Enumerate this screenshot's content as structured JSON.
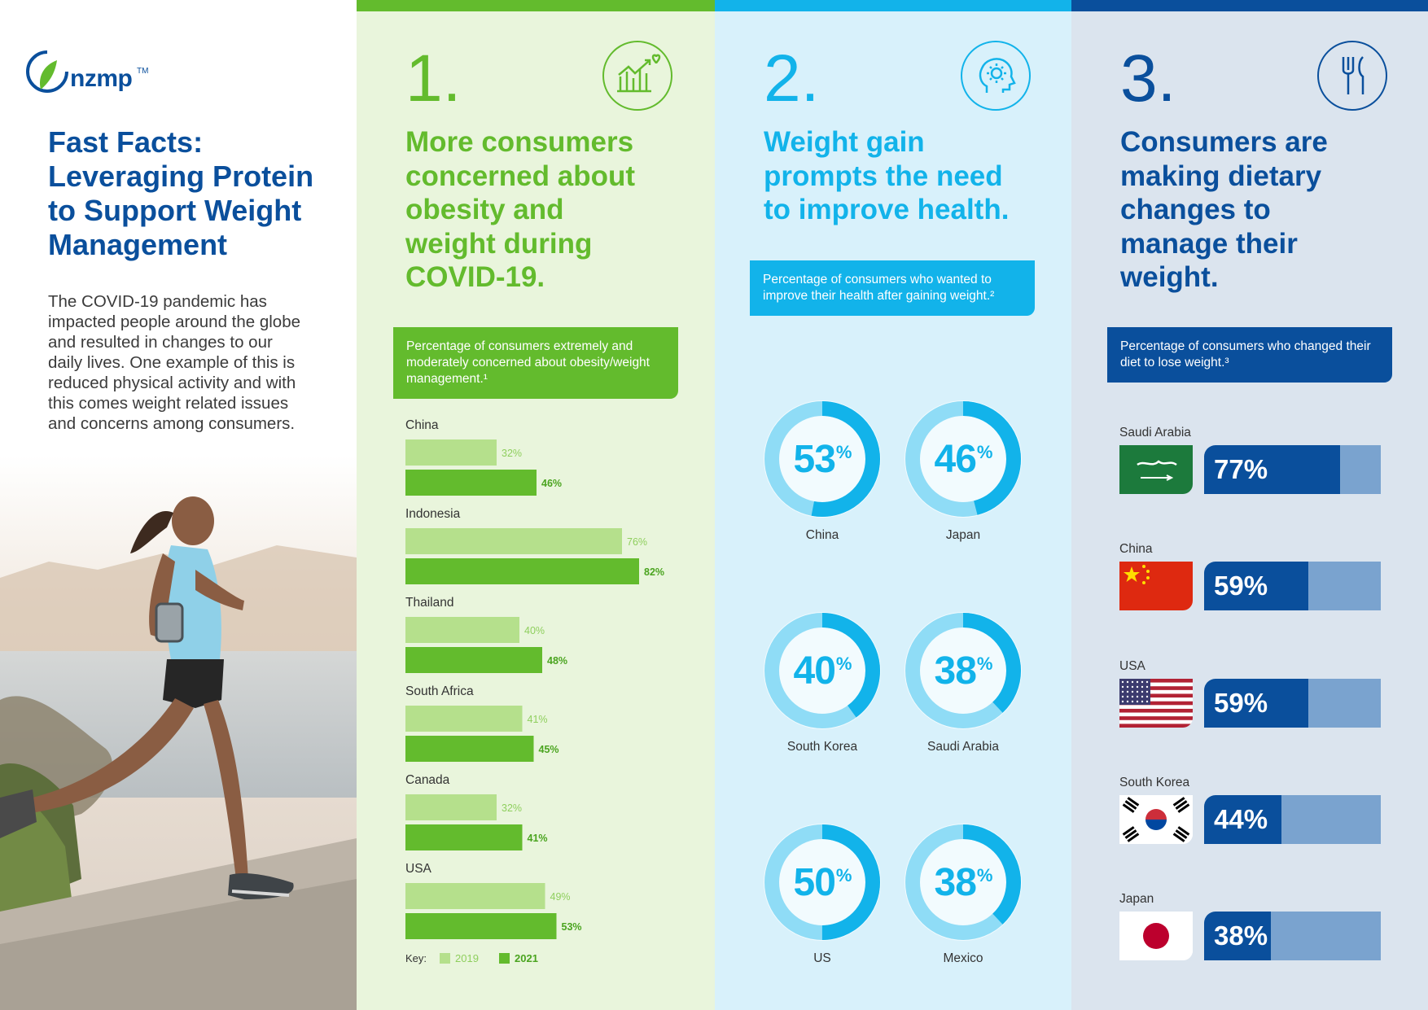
{
  "brand": {
    "name": "nzmp",
    "tm": "TM",
    "green": "#63bb2d",
    "cyan": "#12b3ea",
    "navy": "#0a4f9c"
  },
  "header": {
    "title_strong": "Fast Facts:",
    "title_lines": [
      "Leveraging Protein",
      "to Support Weight",
      "Management"
    ]
  },
  "intro_text": "The COVID-19 pandemic has impacted people around the globe and resulted in changes to our daily lives. One example of this is reduced physical activity and with this comes weight related issues and concerns among consumers.",
  "section1": {
    "number": "1.",
    "icon": "chart-growth-heart-icon",
    "title_lines": [
      "More consumers",
      "concerned about",
      "obesity and",
      "weight during",
      "COVID-19."
    ],
    "caption": "Percentage of consumers extremely and moderately concerned about obesity/weight management.¹"
  },
  "section2": {
    "number": "2.",
    "icon": "head-lightbulb-icon",
    "title_lines": [
      "Weight gain",
      "prompts the need",
      "to improve health."
    ],
    "caption": "Percentage of consumers who wanted to improve their health after gaining weight.²"
  },
  "section3": {
    "number": "3.",
    "icon": "fork-knife-icon",
    "title_lines": [
      "Consumers are",
      "making dietary",
      "changes to",
      "manage their",
      "weight."
    ],
    "caption": "Percentage of consumers who changed their diet to lose weight.³"
  },
  "chart_data": [
    {
      "type": "bar",
      "orientation": "horizontal",
      "categories": [
        "China",
        "Indonesia",
        "Thailand",
        "South Africa",
        "Canada",
        "USA"
      ],
      "series": [
        {
          "name": "2019",
          "values": [
            32,
            76,
            40,
            41,
            32,
            49
          ],
          "labels": [
            "32%",
            "76%",
            "40%",
            "41%",
            "32%",
            "49%"
          ],
          "color": "#b5e08c"
        },
        {
          "name": "2021",
          "values": [
            46,
            82,
            48,
            45,
            41,
            53
          ],
          "labels": [
            "46%",
            "82%",
            "48%",
            "45%",
            "41%",
            "53%"
          ],
          "color": "#63bb2d"
        }
      ],
      "key_label": "Key:",
      "legend": "bottom-left"
    },
    {
      "type": "pie",
      "style": "donut",
      "categories": [
        "China",
        "Japan",
        "South Korea",
        "Saudi Arabia",
        "US",
        "Mexico"
      ],
      "values": [
        53,
        46,
        40,
        38,
        50,
        38
      ],
      "unit": "%",
      "color_value": "#12b3ea",
      "color_rest": "#8fdcf6"
    },
    {
      "type": "bar",
      "orientation": "horizontal",
      "categories": [
        "Saudi Arabia",
        "China",
        "USA",
        "South Korea",
        "Japan"
      ],
      "values": [
        77,
        59,
        59,
        44,
        38
      ],
      "labels": [
        "77%",
        "59%",
        "59%",
        "44%",
        "38%"
      ],
      "flags": [
        "saudi-arabia-flag-icon",
        "china-flag-icon",
        "usa-flag-icon",
        "south-korea-flag-icon",
        "japan-flag-icon"
      ],
      "color_value": "#0a4f9c",
      "color_rest": "#7aa3cf"
    }
  ]
}
